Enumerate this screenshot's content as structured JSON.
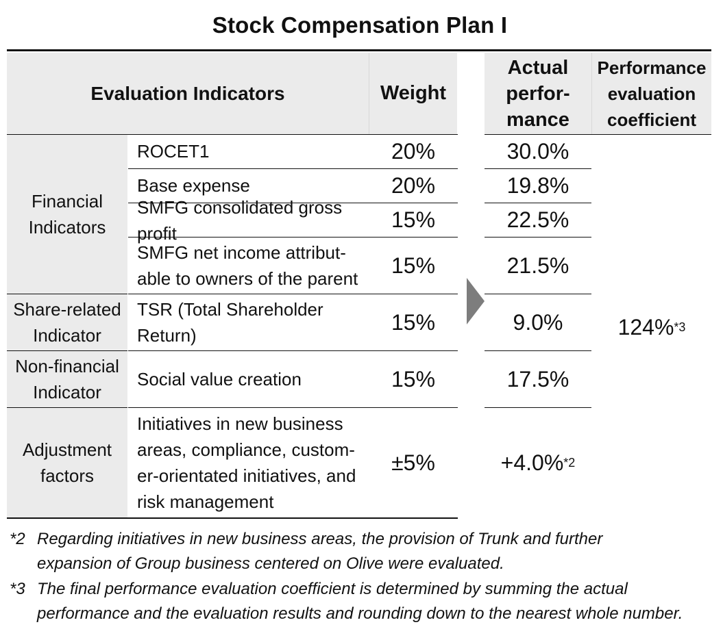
{
  "title": "Stock Compensation Plan I",
  "headers": {
    "evaluation_indicators": "Evaluation Indicators",
    "weight": "Weight",
    "actual": [
      "Actual",
      "perfor-",
      "mance"
    ],
    "coefficient": [
      "Performance",
      "evaluation",
      "coefficient"
    ]
  },
  "categories": {
    "financial": [
      "Financial",
      "Indicators"
    ],
    "share": [
      "Share-related",
      "Indicator"
    ],
    "nonfinancial": [
      "Non-financial",
      "Indicator"
    ],
    "adjustment": [
      "Adjustment",
      "factors"
    ]
  },
  "rows": [
    {
      "indicator": [
        "ROCET1"
      ],
      "weight": "20%",
      "actual": "30.0%"
    },
    {
      "indicator": [
        "Base expense"
      ],
      "weight": "20%",
      "actual": "19.8%"
    },
    {
      "indicator": [
        "SMFG consolidated gross profit"
      ],
      "weight": "15%",
      "actual": "22.5%"
    },
    {
      "indicator": [
        "SMFG net income attribut-",
        "able to owners of the parent"
      ],
      "weight": "15%",
      "actual": "21.5%"
    },
    {
      "indicator": [
        "TSR (Total Shareholder",
        "Return)"
      ],
      "weight": "15%",
      "actual": "9.0%"
    },
    {
      "indicator": [
        "Social value creation"
      ],
      "weight": "15%",
      "actual": "17.5%"
    },
    {
      "indicator": [
        "Initiatives in new business",
        "areas, compliance, custom-",
        "er-orientated initiatives, and",
        "risk management"
      ],
      "weight": "±5%",
      "actual": "+4.0%",
      "actual_note": "*2"
    }
  ],
  "coefficient": {
    "value": "124%",
    "note": "*3"
  },
  "footnotes": [
    {
      "mark": "*2",
      "lines": [
        "Regarding initiatives in new business areas, the provision of Trunk and further",
        "expansion of Group business centered on Olive were evaluated."
      ]
    },
    {
      "mark": "*3",
      "lines": [
        "The final performance evaluation coefficient is determined by summing the actual",
        "performance and the evaluation results and rounding down to the nearest whole number."
      ]
    }
  ]
}
